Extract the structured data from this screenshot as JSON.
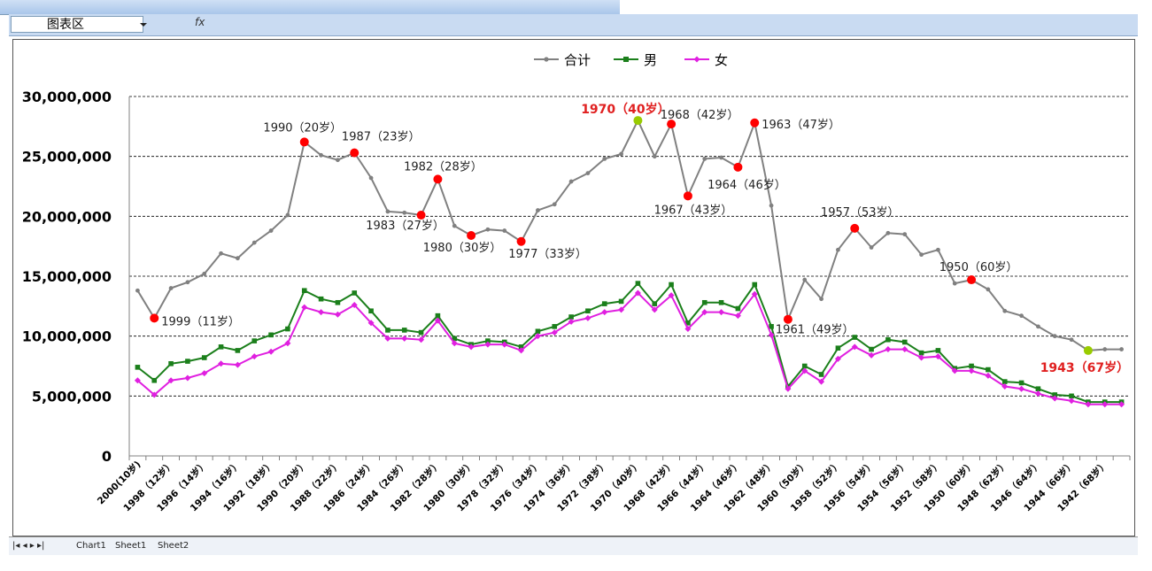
{
  "namebox": {
    "value": "图表区",
    "fx": "fx"
  },
  "sheet_tabs": [
    "Chart1",
    "Sheet1",
    "Sheet2"
  ],
  "chart_data": {
    "type": "line",
    "title": "",
    "legend_placement": "top",
    "ylim": [
      0,
      30000000
    ],
    "yticks": [
      0,
      5000000,
      10000000,
      15000000,
      20000000,
      25000000,
      30000000
    ],
    "ytick_labels": [
      "0",
      "5,000,000",
      "10,000,000",
      "15,000,000",
      "20,000,000",
      "25,000,000",
      "30,000,000"
    ],
    "grid": "horizontal-dashed",
    "x_tick_labels": [
      "2000(10岁)",
      "1998（12岁）",
      "1996（14岁）",
      "1994（16岁）",
      "1992（18岁）",
      "1990（20岁）",
      "1988（22岁）",
      "1986（24岁）",
      "1984（26岁）",
      "1982（28岁）",
      "1980（30岁）",
      "1978（32岁）",
      "1976（34岁）",
      "1974（36岁）",
      "1972（38岁）",
      "1970（40岁）",
      "1968（42岁）",
      "1966（44岁）",
      "1964（46岁）",
      "1962（48岁）",
      "1960（50岁）",
      "1958（52岁）",
      "1956（54岁）",
      "1954（56岁）",
      "1952（58岁）",
      "1950（60岁）",
      "1948（62岁）",
      "1946（64岁）",
      "1944（66岁）",
      "1942（68岁）"
    ],
    "series": [
      {
        "name": "合计",
        "color": "#808080",
        "values": [
          13800000,
          11500000,
          14000000,
          14500000,
          15200000,
          16900000,
          16500000,
          17800000,
          18800000,
          20100000,
          26200000,
          25100000,
          24700000,
          25300000,
          23200000,
          20400000,
          20300000,
          20100000,
          23100000,
          19200000,
          18400000,
          18900000,
          18800000,
          17900000,
          20500000,
          21000000,
          22900000,
          23600000,
          24800000,
          25200000,
          28000000,
          25000000,
          27700000,
          21700000,
          24800000,
          24900000,
          24100000,
          27800000,
          20900000,
          11400000,
          14700000,
          13100000,
          17200000,
          19000000,
          17400000,
          18600000,
          18500000,
          16800000,
          17200000,
          14400000,
          14700000,
          13900000,
          12100000,
          11700000,
          10800000,
          10000000,
          9700000,
          8800000,
          8900000,
          8900000
        ]
      },
      {
        "name": "男",
        "color": "#1b7f1b",
        "values": [
          7400000,
          6300000,
          7700000,
          7900000,
          8200000,
          9100000,
          8800000,
          9600000,
          10100000,
          10600000,
          13800000,
          13100000,
          12800000,
          13600000,
          12100000,
          10500000,
          10500000,
          10300000,
          11700000,
          9800000,
          9300000,
          9600000,
          9500000,
          9100000,
          10400000,
          10800000,
          11600000,
          12100000,
          12700000,
          12900000,
          14400000,
          12700000,
          14300000,
          11100000,
          12800000,
          12800000,
          12300000,
          14300000,
          10800000,
          5800000,
          7500000,
          6800000,
          9000000,
          9900000,
          8900000,
          9700000,
          9500000,
          8600000,
          8800000,
          7300000,
          7500000,
          7200000,
          6200000,
          6100000,
          5600000,
          5100000,
          5000000,
          4500000,
          4500000,
          4500000
        ]
      },
      {
        "name": "女",
        "color": "#e020e0",
        "values": [
          6300000,
          5100000,
          6300000,
          6500000,
          6900000,
          7700000,
          7600000,
          8300000,
          8700000,
          9400000,
          12400000,
          12000000,
          11800000,
          12600000,
          11100000,
          9800000,
          9800000,
          9700000,
          11300000,
          9400000,
          9100000,
          9300000,
          9300000,
          8800000,
          10000000,
          10300000,
          11200000,
          11500000,
          12000000,
          12200000,
          13600000,
          12200000,
          13400000,
          10600000,
          12000000,
          12000000,
          11700000,
          13500000,
          10100000,
          5600000,
          7100000,
          6200000,
          8100000,
          9100000,
          8400000,
          8900000,
          8900000,
          8200000,
          8300000,
          7100000,
          7100000,
          6700000,
          5800000,
          5600000,
          5200000,
          4800000,
          4600000,
          4300000,
          4300000,
          4300000
        ]
      }
    ],
    "highlights": [
      {
        "index": 1,
        "color": "#ff0000",
        "label": "1999（11岁）",
        "emph": false
      },
      {
        "index": 10,
        "color": "#ff0000",
        "label": "1990（20岁）",
        "emph": false
      },
      {
        "index": 13,
        "color": "#ff0000",
        "label": "1987（23岁）",
        "emph": false
      },
      {
        "index": 17,
        "color": "#ff0000",
        "label": "1983（27岁）",
        "emph": false
      },
      {
        "index": 18,
        "color": "#ff0000",
        "label": "1982（28岁）",
        "emph": false
      },
      {
        "index": 20,
        "color": "#ff0000",
        "label": "1980（30岁）",
        "emph": false
      },
      {
        "index": 23,
        "color": "#ff0000",
        "label": "1977（33岁）",
        "emph": false
      },
      {
        "index": 30,
        "color": "#99cc00",
        "label": "1970（40岁）",
        "emph": true
      },
      {
        "index": 32,
        "color": "#ff0000",
        "label": "1968（42岁）",
        "emph": false
      },
      {
        "index": 33,
        "color": "#ff0000",
        "label": "1967（43岁）",
        "emph": false
      },
      {
        "index": 36,
        "color": "#ff0000",
        "label": "1964（46岁）",
        "emph": false
      },
      {
        "index": 37,
        "color": "#ff0000",
        "label": "1963（47岁）",
        "emph": false
      },
      {
        "index": 39,
        "color": "#ff0000",
        "label": "1961（49岁）",
        "emph": false
      },
      {
        "index": 43,
        "color": "#ff0000",
        "label": "1957（53岁）",
        "emph": false
      },
      {
        "index": 50,
        "color": "#ff0000",
        "label": "1950（60岁）",
        "emph": false
      },
      {
        "index": 57,
        "color": "#99cc00",
        "label": "1943（67岁）",
        "emph": true
      }
    ]
  }
}
